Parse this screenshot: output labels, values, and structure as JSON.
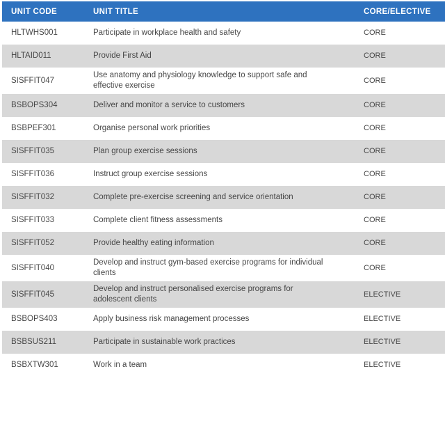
{
  "chart_data": {
    "type": "table",
    "columns": [
      "UNIT CODE",
      "UNIT TITLE",
      "CORE/ELECTIVE"
    ],
    "rows": [
      {
        "code": "HLTWHS001",
        "title": "Participate in workplace health and safety",
        "core_elective": "CORE"
      },
      {
        "code": "HLTAID011",
        "title": "Provide First Aid",
        "core_elective": "CORE"
      },
      {
        "code": "SISFFIT047",
        "title": "Use anatomy and physiology knowledge to support safe and effective exercise",
        "core_elective": "CORE"
      },
      {
        "code": "BSBOPS304",
        "title": "Deliver and monitor a service to customers",
        "core_elective": "CORE"
      },
      {
        "code": "BSBPEF301",
        "title": "Organise personal work priorities",
        "core_elective": "CORE"
      },
      {
        "code": "SISFFIT035",
        "title": "Plan group exercise sessions",
        "core_elective": "CORE"
      },
      {
        "code": "SISFFIT036",
        "title": "Instruct group exercise sessions",
        "core_elective": "CORE"
      },
      {
        "code": "SISFFIT032",
        "title": "Complete pre-exercise screening and service orientation",
        "core_elective": "CORE"
      },
      {
        "code": "SISFFIT033",
        "title": "Complete client fitness assessments",
        "core_elective": "CORE"
      },
      {
        "code": "SISFFIT052",
        "title": "Provide healthy eating information",
        "core_elective": "CORE"
      },
      {
        "code": "SISFFIT040",
        "title": "Develop and instruct gym-based exercise programs for individual clients",
        "core_elective": "CORE"
      },
      {
        "code": "SISFFIT045",
        "title": "Develop and instruct personalised exercise programs for adolescent clients",
        "core_elective": "ELECTIVE"
      },
      {
        "code": "BSBOPS403",
        "title": "Apply business risk management processes",
        "core_elective": "ELECTIVE"
      },
      {
        "code": "BSBSUS211",
        "title": "Participate in sustainable work practices",
        "core_elective": "ELECTIVE"
      },
      {
        "code": "BSBXTW301",
        "title": "Work in a team",
        "core_elective": "ELECTIVE"
      }
    ],
    "layout": {
      "grid": "off",
      "legend_position": "none",
      "alternating_rows": true
    }
  },
  "colors": {
    "header_bg": "#2e72bf",
    "header_text": "#ffffff",
    "row_bg": "#ffffff",
    "row_alt_bg": "#d8d8d8",
    "body_text": "#474747"
  }
}
